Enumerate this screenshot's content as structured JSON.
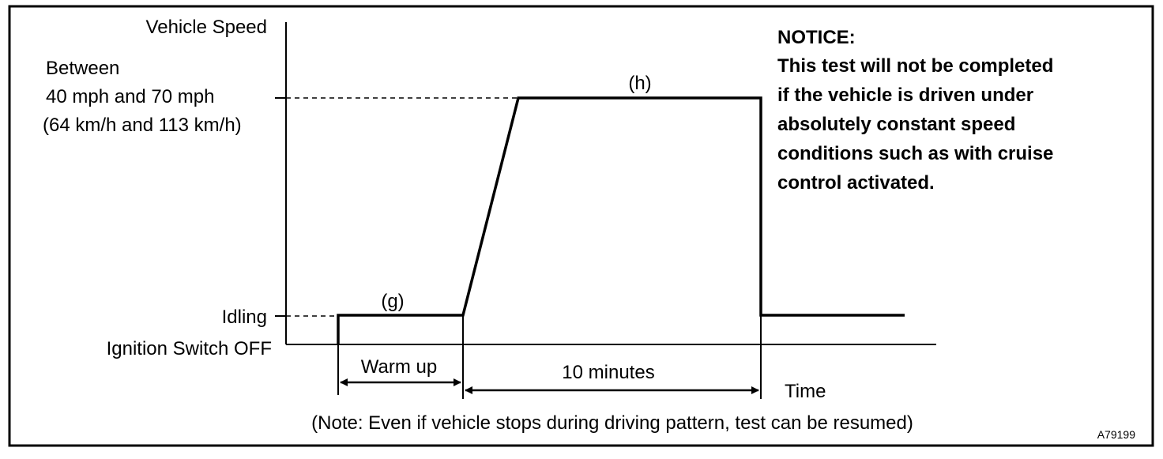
{
  "diagram": {
    "figure_id": "A79199",
    "y_axis": {
      "title": "Vehicle Speed",
      "speed_label": {
        "line1": "Between",
        "line2": "40 mph and 70 mph",
        "line3": "(64 km/h and 113 km/h)"
      },
      "idling_label": "Idling",
      "ignition_off_label": "Ignition Switch OFF"
    },
    "x_axis": {
      "title": "Time"
    },
    "segments": {
      "warmup_marker": "(g)",
      "cruise_marker": "(h)",
      "warmup_duration": "Warm up",
      "cruise_duration": "10 minutes"
    },
    "notice": {
      "heading": "NOTICE:",
      "lines": [
        "This test will not be completed",
        "if the vehicle is driven under",
        "absolutely constant speed",
        "conditions such as with cruise",
        "control activated."
      ]
    },
    "footnote": "(Note: Even if vehicle stops during driving pattern, test can be resumed)"
  }
}
